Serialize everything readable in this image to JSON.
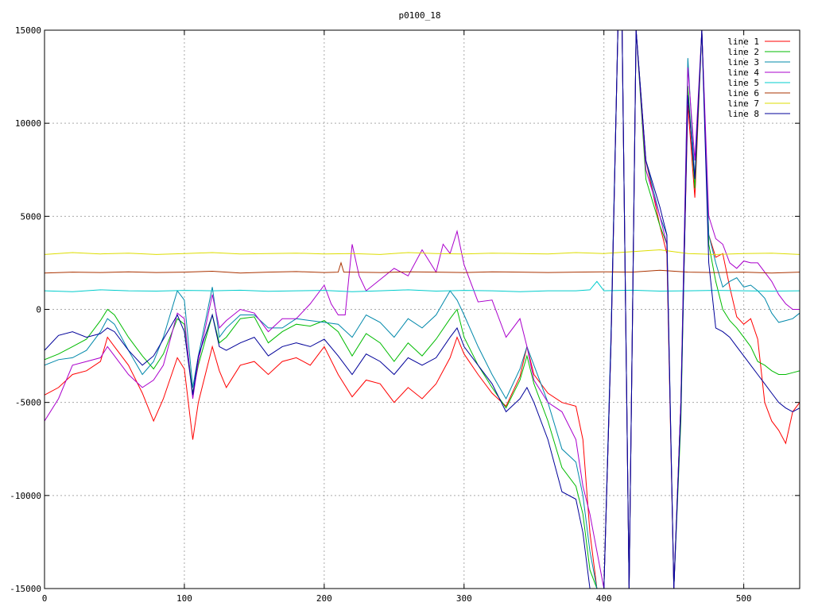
{
  "chart_data": {
    "type": "line",
    "title": "p0100_18",
    "xlabel": "",
    "ylabel": "",
    "xlim": [
      0,
      540
    ],
    "ylim": [
      -15000,
      15000
    ],
    "xticks": [
      0,
      100,
      200,
      300,
      400,
      500
    ],
    "yticks": [
      -15000,
      -10000,
      -5000,
      0,
      5000,
      10000,
      15000
    ],
    "grid": true,
    "legend_position": "top-right",
    "series": [
      {
        "name": "line 1",
        "color": "#ff0000",
        "x": [
          0,
          10,
          20,
          30,
          40,
          45,
          50,
          60,
          70,
          78,
          85,
          95,
          100,
          106,
          110,
          120,
          125,
          130,
          140,
          150,
          160,
          170,
          180,
          190,
          200,
          210,
          220,
          230,
          240,
          250,
          260,
          270,
          280,
          290,
          295,
          300,
          310,
          320,
          330,
          340,
          345,
          350,
          360,
          370,
          380,
          385,
          390,
          395,
          400,
          405,
          410,
          413,
          418,
          423,
          430,
          440,
          445,
          450,
          455,
          460,
          465,
          470,
          475,
          480,
          485,
          490,
          495,
          500,
          505,
          510,
          515,
          520,
          525,
          530,
          535,
          540
        ],
        "y": [
          -4600,
          -4200,
          -3500,
          -3300,
          -2800,
          -1500,
          -2000,
          -3000,
          -4500,
          -6000,
          -4800,
          -2600,
          -3200,
          -7000,
          -5000,
          -2000,
          -3300,
          -4200,
          -3000,
          -2800,
          -3500,
          -2800,
          -2600,
          -3000,
          -2000,
          -3500,
          -4700,
          -3800,
          -4000,
          -5000,
          -4200,
          -4800,
          -4000,
          -2600,
          -1500,
          -2400,
          -3500,
          -4500,
          -5200,
          -3600,
          -2000,
          -3500,
          -4500,
          -5000,
          -5200,
          -7000,
          -12000,
          -15000,
          -15000,
          -2000,
          15000,
          15000,
          -15000,
          15000,
          8000,
          4500,
          3000,
          -15000,
          -5000,
          11000,
          6000,
          15000,
          4000,
          2800,
          3000,
          1200,
          -400,
          -800,
          -500,
          -1600,
          -5000,
          -6000,
          -6500,
          -7200,
          -5500,
          -5000
        ]
      },
      {
        "name": "line 2",
        "color": "#00bb00",
        "x": [
          0,
          10,
          20,
          30,
          40,
          45,
          50,
          60,
          70,
          78,
          85,
          95,
          100,
          106,
          110,
          120,
          125,
          130,
          140,
          150,
          160,
          170,
          180,
          190,
          200,
          210,
          220,
          230,
          240,
          250,
          260,
          270,
          280,
          290,
          295,
          300,
          310,
          320,
          330,
          340,
          345,
          350,
          360,
          370,
          380,
          385,
          390,
          395,
          400,
          405,
          410,
          413,
          418,
          423,
          430,
          440,
          445,
          450,
          455,
          460,
          465,
          470,
          475,
          480,
          485,
          490,
          495,
          500,
          505,
          510,
          515,
          520,
          525,
          530,
          535,
          540
        ],
        "y": [
          -2700,
          -2400,
          -2000,
          -1600,
          -600,
          0,
          -300,
          -1500,
          -2500,
          -3200,
          -2400,
          -500,
          -800,
          -4500,
          -3000,
          -300,
          -1800,
          -1500,
          -500,
          -400,
          -1800,
          -1200,
          -800,
          -900,
          -600,
          -1200,
          -2500,
          -1300,
          -1800,
          -2800,
          -1800,
          -2500,
          -1600,
          -500,
          0,
          -1500,
          -3000,
          -4200,
          -5300,
          -3800,
          -2500,
          -4000,
          -6000,
          -8500,
          -9500,
          -11000,
          -14000,
          -15000,
          -15000,
          -2000,
          15000,
          15000,
          -15000,
          15000,
          7000,
          4500,
          3500,
          -15000,
          -6000,
          12000,
          6500,
          15000,
          3500,
          1500,
          0,
          -600,
          -1000,
          -1500,
          -2000,
          -2800,
          -3000,
          -3300,
          -3500,
          -3500,
          -3400,
          -3300
        ]
      },
      {
        "name": "line 3",
        "color": "#0088aa",
        "x": [
          0,
          10,
          20,
          30,
          40,
          45,
          50,
          60,
          70,
          78,
          85,
          95,
          100,
          106,
          110,
          120,
          125,
          130,
          140,
          150,
          160,
          170,
          180,
          190,
          200,
          210,
          220,
          230,
          240,
          250,
          260,
          270,
          280,
          290,
          295,
          300,
          310,
          320,
          330,
          340,
          345,
          350,
          360,
          370,
          380,
          385,
          390,
          395,
          400,
          405,
          410,
          413,
          418,
          423,
          430,
          440,
          445,
          450,
          455,
          460,
          465,
          470,
          475,
          480,
          485,
          490,
          495,
          500,
          505,
          510,
          515,
          520,
          525,
          530,
          535,
          540
        ],
        "y": [
          -3000,
          -2700,
          -2600,
          -2200,
          -1200,
          -500,
          -800,
          -2200,
          -3500,
          -2800,
          -1500,
          1000,
          500,
          -4200,
          -2500,
          1200,
          -1500,
          -1000,
          -300,
          -300,
          -1000,
          -1000,
          -500,
          -600,
          -700,
          -800,
          -1500,
          -300,
          -700,
          -1500,
          -500,
          -1000,
          -300,
          1000,
          500,
          -300,
          -2000,
          -3500,
          -4800,
          -3200,
          -2000,
          -3000,
          -5000,
          -7500,
          -8200,
          -10000,
          -13000,
          -15000,
          -15000,
          -1500,
          15000,
          15000,
          -15000,
          15000,
          8000,
          5000,
          4000,
          -15000,
          -5000,
          13500,
          7000,
          15000,
          4000,
          2500,
          1200,
          1500,
          1700,
          1200,
          1300,
          1000,
          600,
          -200,
          -700,
          -600,
          -500,
          -200
        ]
      },
      {
        "name": "line 4",
        "color": "#aa00cc",
        "x": [
          0,
          10,
          20,
          30,
          40,
          45,
          50,
          60,
          70,
          78,
          85,
          95,
          100,
          106,
          110,
          120,
          125,
          130,
          140,
          150,
          160,
          170,
          180,
          190,
          200,
          205,
          210,
          215,
          220,
          225,
          230,
          240,
          250,
          260,
          270,
          280,
          285,
          290,
          295,
          300,
          310,
          320,
          330,
          340,
          345,
          350,
          360,
          370,
          380,
          385,
          390,
          395,
          400,
          405,
          410,
          413,
          418,
          423,
          430,
          440,
          445,
          450,
          455,
          460,
          465,
          470,
          475,
          480,
          485,
          490,
          495,
          500,
          505,
          510,
          515,
          520,
          525,
          530,
          535,
          540
        ],
        "y": [
          -6000,
          -4800,
          -3000,
          -2800,
          -2600,
          -2000,
          -2500,
          -3500,
          -4200,
          -3800,
          -3000,
          -200,
          -500,
          -4800,
          -2800,
          800,
          -1000,
          -600,
          0,
          -200,
          -1200,
          -500,
          -500,
          300,
          1300,
          300,
          -300,
          -300,
          3500,
          1800,
          1000,
          1600,
          2200,
          1800,
          3200,
          2000,
          3500,
          3000,
          4200,
          2400,
          400,
          500,
          -1500,
          -500,
          -2000,
          -3800,
          -5000,
          -5500,
          -7000,
          -9500,
          -11000,
          -13000,
          -15000,
          -2000,
          15000,
          15000,
          -15000,
          15000,
          7500,
          5000,
          3500,
          -15000,
          -5000,
          13000,
          8000,
          15000,
          5000,
          3800,
          3500,
          2500,
          2200,
          2600,
          2500,
          2500,
          2000,
          1500,
          800,
          300,
          0,
          0
        ]
      },
      {
        "name": "line 5",
        "color": "#00cccc",
        "x": [
          0,
          20,
          40,
          60,
          80,
          100,
          120,
          140,
          160,
          180,
          200,
          220,
          240,
          260,
          280,
          300,
          320,
          340,
          360,
          380,
          390,
          395,
          400,
          420,
          440,
          460,
          480,
          500,
          520,
          540
        ],
        "y": [
          1000,
          950,
          1050,
          1000,
          980,
          1020,
          1000,
          1030,
          970,
          1000,
          1020,
          950,
          1000,
          1050,
          980,
          1020,
          1000,
          950,
          1000,
          1000,
          1050,
          1500,
          1000,
          1030,
          980,
          1000,
          1020,
          1000,
          980,
          1000
        ]
      },
      {
        "name": "line 6",
        "color": "#aa3300",
        "x": [
          0,
          20,
          40,
          60,
          80,
          100,
          120,
          140,
          160,
          180,
          200,
          210,
          212,
          214,
          220,
          240,
          260,
          280,
          300,
          320,
          340,
          360,
          380,
          400,
          420,
          440,
          460,
          480,
          500,
          520,
          540
        ],
        "y": [
          1950,
          2000,
          1980,
          2020,
          1980,
          2000,
          2050,
          1950,
          2000,
          2030,
          1980,
          2000,
          2500,
          2000,
          2000,
          1980,
          2020,
          2000,
          1980,
          2020,
          2000,
          1980,
          2000,
          2020,
          2000,
          2100,
          2000,
          1980,
          2000,
          1950,
          2000
        ]
      },
      {
        "name": "line 7",
        "color": "#dddd00",
        "x": [
          0,
          20,
          40,
          60,
          80,
          100,
          120,
          140,
          160,
          180,
          200,
          220,
          240,
          260,
          280,
          300,
          320,
          340,
          360,
          380,
          400,
          420,
          440,
          460,
          480,
          500,
          520,
          540
        ],
        "y": [
          2950,
          3050,
          2980,
          3020,
          2950,
          3000,
          3050,
          2980,
          3000,
          3020,
          2980,
          3000,
          2950,
          3050,
          3000,
          2980,
          3020,
          3000,
          2980,
          3050,
          3000,
          3100,
          3200,
          3000,
          2950,
          3000,
          3020,
          2950
        ]
      },
      {
        "name": "line 8",
        "color": "#000099",
        "x": [
          0,
          10,
          20,
          30,
          40,
          45,
          50,
          60,
          70,
          78,
          85,
          95,
          100,
          106,
          110,
          120,
          125,
          130,
          140,
          150,
          160,
          170,
          180,
          190,
          200,
          210,
          220,
          230,
          240,
          250,
          260,
          270,
          280,
          290,
          295,
          300,
          310,
          320,
          330,
          340,
          345,
          350,
          360,
          370,
          380,
          385,
          390,
          395,
          400,
          405,
          410,
          413,
          418,
          423,
          430,
          440,
          445,
          450,
          455,
          460,
          465,
          470,
          475,
          480,
          485,
          490,
          495,
          500,
          505,
          510,
          515,
          520,
          525,
          530,
          535,
          540
        ],
        "y": [
          -2200,
          -1400,
          -1200,
          -1500,
          -1300,
          -1000,
          -1200,
          -2200,
          -3000,
          -2500,
          -1600,
          -300,
          -1200,
          -4600,
          -2500,
          -300,
          -2000,
          -2200,
          -1800,
          -1500,
          -2500,
          -2000,
          -1800,
          -2000,
          -1600,
          -2500,
          -3500,
          -2400,
          -2800,
          -3500,
          -2600,
          -3000,
          -2600,
          -1500,
          -1000,
          -2000,
          -3000,
          -4000,
          -5500,
          -4800,
          -4200,
          -5000,
          -7000,
          -9800,
          -10200,
          -12000,
          -15000,
          -15000,
          -15000,
          -2000,
          15000,
          15000,
          -15000,
          15000,
          8000,
          5500,
          4000,
          -15000,
          -5500,
          11500,
          7000,
          15000,
          2500,
          -1000,
          -1200,
          -1500,
          -2000,
          -2500,
          -3000,
          -3500,
          -4000,
          -4500,
          -5000,
          -5300,
          -5500,
          -5300
        ]
      }
    ]
  }
}
